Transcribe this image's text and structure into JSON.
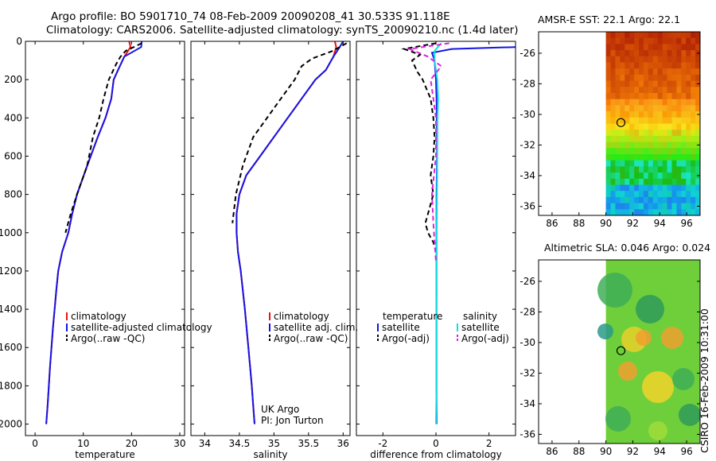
{
  "header": {
    "line1": "Argo profile: BO 5901710_74 08-Feb-2009 20090208_41 30.533S 91.118E",
    "line2": "Climatology: CARS2006. Satellite-adjusted climatology: synTS_20090210.nc (1.4d later)"
  },
  "credit": "CSIRO 16-Feb-2009 10:31:00",
  "colors": {
    "clim": "#e11",
    "sat": "#1515e6",
    "argo": "#000",
    "sat_sal": "#11e0e0",
    "argo_sal": "#e020e0"
  },
  "chart_data": [
    {
      "type": "line",
      "name": "temperature",
      "xlabel": "temperature",
      "xlim": [
        -2,
        31
      ],
      "ylim": [
        2060,
        0
      ],
      "xticks": [
        0,
        10,
        20,
        30
      ],
      "yticks": [
        0,
        200,
        400,
        600,
        800,
        1000,
        1200,
        1400,
        1600,
        1800,
        2000
      ],
      "series": [
        {
          "name": "climatology",
          "color": "#e11",
          "dash": "",
          "x": [
            19.5,
            19.8,
            18.5,
            17.2,
            16.3,
            15.8,
            14.6,
            13.0,
            10.8,
            8.7,
            7.7,
            6.9,
            5.6,
            4.8,
            4.4,
            3.7,
            3.1,
            2.6,
            2.3
          ],
          "y": [
            0,
            30,
            80,
            150,
            200,
            300,
            400,
            500,
            650,
            800,
            900,
            1000,
            1100,
            1200,
            1300,
            1500,
            1700,
            1900,
            2000
          ]
        },
        {
          "name": "satellite-adjusted climatology",
          "color": "#1515e6",
          "dash": "",
          "x": [
            22.1,
            22.0,
            18.5,
            17.2,
            16.3,
            15.8,
            14.6,
            13.0,
            10.8,
            8.7,
            7.7,
            6.9,
            5.6,
            4.8,
            4.4,
            3.7,
            3.1,
            2.6,
            2.3
          ],
          "y": [
            0,
            30,
            80,
            150,
            200,
            300,
            400,
            500,
            650,
            800,
            900,
            1000,
            1100,
            1200,
            1300,
            1500,
            1700,
            1900,
            2000
          ]
        },
        {
          "name": "Argo(..raw -QC)",
          "color": "#000",
          "dash": "6,4",
          "x": [
            22.1,
            18.8,
            17.7,
            16.8,
            15.3,
            14.2,
            13.3,
            12.0,
            10.8,
            8.7,
            7.4,
            6.3
          ],
          "y": [
            10,
            50,
            80,
            120,
            200,
            300,
            400,
            500,
            650,
            800,
            900,
            1000
          ]
        }
      ],
      "legend": [
        "climatology",
        "satellite-adjusted climatology",
        "Argo(..raw -QC)"
      ]
    },
    {
      "type": "line",
      "name": "salinity",
      "xlabel": "salinity",
      "xlim": [
        33.8,
        36.1
      ],
      "ylim": [
        2060,
        0
      ],
      "xticks": [
        34,
        34.5,
        35,
        35.5,
        36
      ],
      "series": [
        {
          "name": "climatology",
          "color": "#e11",
          "dash": "",
          "x": [
            35.88,
            35.9,
            35.86,
            35.75,
            35.6,
            35.4,
            35.2,
            35.0,
            34.8,
            34.6,
            34.5,
            34.46,
            34.46,
            34.48,
            34.52,
            34.58,
            34.63,
            34.68,
            34.71,
            34.72
          ],
          "y": [
            0,
            30,
            80,
            150,
            200,
            300,
            400,
            500,
            600,
            700,
            800,
            900,
            1000,
            1100,
            1200,
            1400,
            1600,
            1800,
            1950,
            2000
          ]
        },
        {
          "name": "satellite adj. clim.",
          "color": "#1515e6",
          "dash": "",
          "x": [
            36.0,
            35.95,
            35.86,
            35.75,
            35.6,
            35.4,
            35.2,
            35.0,
            34.8,
            34.6,
            34.5,
            34.46,
            34.46,
            34.48,
            34.52,
            34.58,
            34.63,
            34.68,
            34.71,
            34.72
          ],
          "y": [
            0,
            30,
            80,
            150,
            200,
            300,
            400,
            500,
            600,
            700,
            800,
            900,
            1000,
            1100,
            1200,
            1400,
            1600,
            1800,
            1950,
            2000
          ]
        },
        {
          "name": "Argo(..raw -QC)",
          "color": "#000",
          "dash": "6,4",
          "x": [
            36.05,
            35.85,
            35.55,
            35.4,
            35.3,
            35.1,
            34.9,
            34.7,
            34.55,
            34.45,
            34.4
          ],
          "y": [
            10,
            50,
            90,
            130,
            200,
            300,
            400,
            500,
            650,
            800,
            950
          ]
        }
      ],
      "legend": [
        "climatology",
        "satellite adj. clim.",
        "Argo(..raw -QC)"
      ],
      "annotations": [
        "UK Argo",
        "PI: Jon Turton"
      ]
    },
    {
      "type": "line",
      "name": "difference",
      "xlabel": "difference from climatology",
      "xlim": [
        -3,
        3
      ],
      "ylim": [
        2060,
        0
      ],
      "xticks": [
        -2,
        0,
        2
      ],
      "series": [
        {
          "name": "temperature satellite",
          "color": "#1515e6",
          "dash": "",
          "x": [
            3,
            0.6,
            -0.15,
            -0.05,
            0.0,
            0.02,
            0.03,
            0.04,
            0.02,
            0.02,
            0.02,
            0.02
          ],
          "y": [
            30,
            40,
            60,
            100,
            200,
            300,
            400,
            600,
            800,
            1000,
            1400,
            2000
          ]
        },
        {
          "name": "temperature Argo(-adj)",
          "color": "#000",
          "dash": "6,4",
          "x": [
            0.0,
            -1.2,
            -0.6,
            -0.9,
            -0.7,
            -0.5,
            -0.2,
            -0.1,
            -0.05,
            -0.1,
            -0.2,
            -0.1,
            -0.4,
            -0.3,
            -0.1,
            0.0
          ],
          "y": [
            10,
            40,
            70,
            100,
            160,
            200,
            300,
            400,
            500,
            600,
            700,
            800,
            950,
            1000,
            1050,
            1100
          ]
        },
        {
          "name": "salinity satellite",
          "color": "#11e0e0",
          "dash": "",
          "x": [
            0.2,
            -0.05,
            -0.05,
            0.05,
            0.08,
            0.06,
            0.05,
            0.04,
            0.03,
            0.02,
            0.02,
            0.0
          ],
          "y": [
            10,
            50,
            100,
            200,
            300,
            400,
            600,
            800,
            1000,
            1400,
            1800,
            2000
          ]
        },
        {
          "name": "salinity Argo(-adj)",
          "color": "#e020e0",
          "dash": "6,4",
          "x": [
            0.5,
            -1.0,
            -0.3,
            0.2,
            -0.2,
            -0.1,
            0.0,
            0.0,
            -0.15,
            -0.1,
            -0.05,
            0.0
          ],
          "y": [
            10,
            40,
            80,
            130,
            200,
            300,
            400,
            600,
            800,
            950,
            1050,
            1150
          ]
        }
      ],
      "legend_headers": [
        "temperature",
        "salinity"
      ],
      "legend": [
        "satellite",
        "Argo(-adj)",
        "satellite",
        "Argo(-adj)"
      ]
    },
    {
      "type": "heatmap",
      "name": "sst",
      "title": "AMSR-E SST: 22.1  Argo: 22.1",
      "xlim": [
        85,
        97
      ],
      "ylim": [
        -36.6,
        -24.6
      ],
      "xticks": [
        86,
        88,
        90,
        92,
        94,
        96
      ],
      "yticks": [
        -26,
        -28,
        -30,
        -32,
        -34,
        -36
      ],
      "data_xmin": 90,
      "marker": {
        "lon": 91.118,
        "lat": -30.533
      }
    },
    {
      "type": "heatmap",
      "name": "sla",
      "title": "Altimetric SLA: 0.046  Argo: 0.024",
      "xlim": [
        85,
        97
      ],
      "ylim": [
        -36.6,
        -24.6
      ],
      "xticks": [
        86,
        88,
        90,
        92,
        94,
        96
      ],
      "yticks": [
        -26,
        -28,
        -30,
        -32,
        -34,
        -36
      ],
      "data_xmin": 90,
      "marker": {
        "lon": 91.118,
        "lat": -30.533
      }
    }
  ]
}
